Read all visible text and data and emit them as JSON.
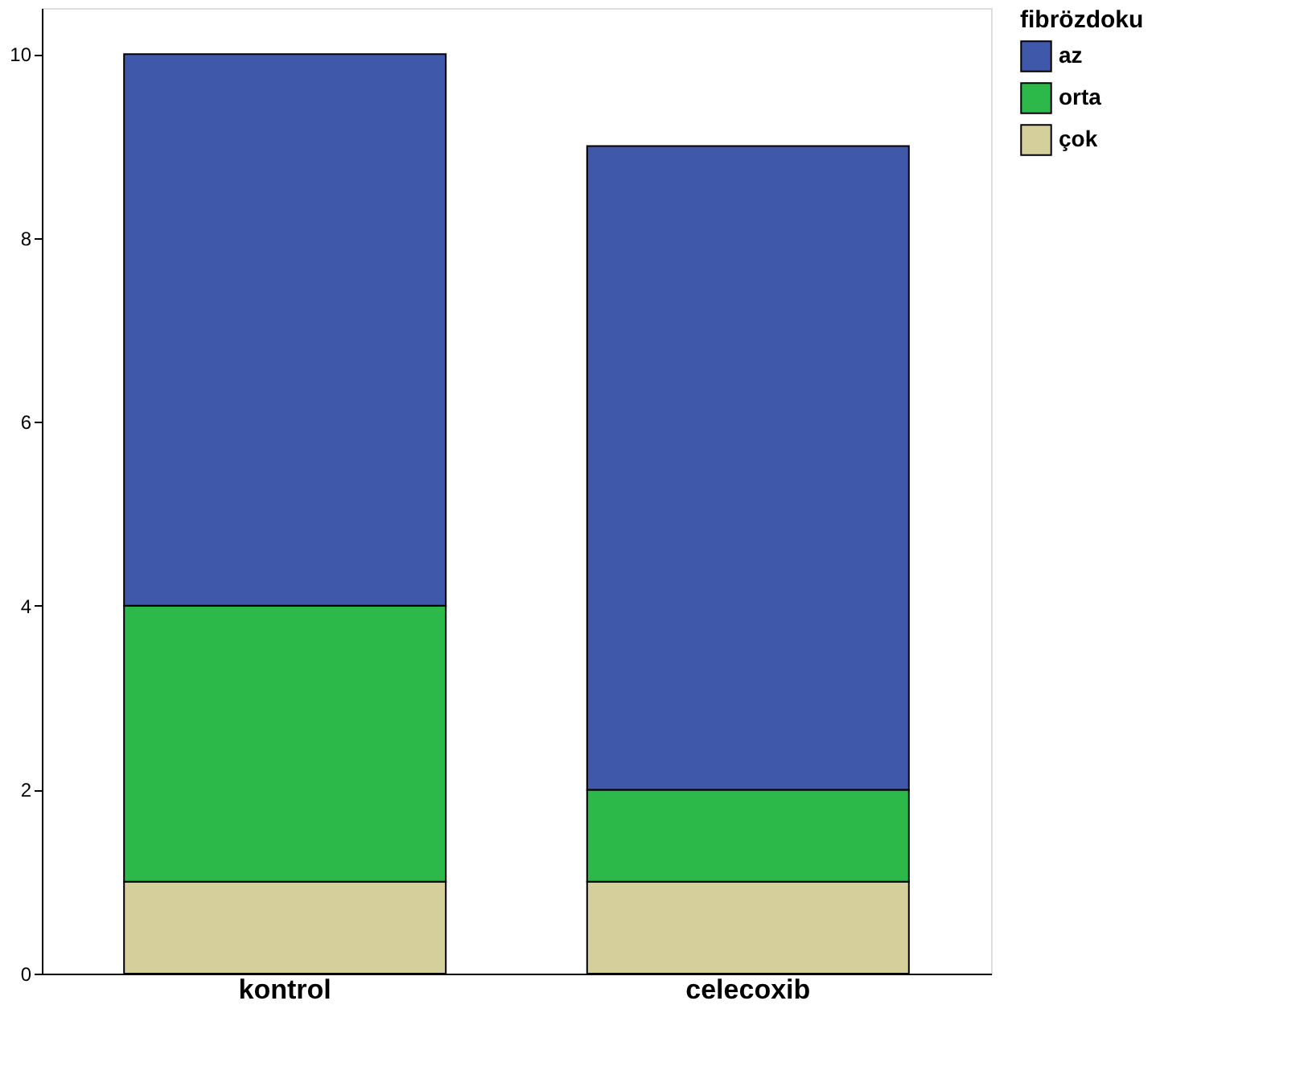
{
  "chart_data": {
    "type": "bar",
    "stacked": true,
    "legend_title": "fibrözdoku",
    "legend": "top right",
    "categories": [
      "kontrol",
      "celecoxib"
    ],
    "series": [
      {
        "name": "çok",
        "color": "#d4cf9b",
        "values": [
          1,
          1
        ]
      },
      {
        "name": "orta",
        "color": "#2db84a",
        "values": [
          3,
          1
        ]
      },
      {
        "name": "az",
        "color": "#3f58aa",
        "values": [
          6,
          7
        ]
      }
    ],
    "ylim": [
      0,
      10.5
    ],
    "yticks": [
      0,
      2,
      4,
      6,
      8,
      10
    ],
    "grid": false
  }
}
